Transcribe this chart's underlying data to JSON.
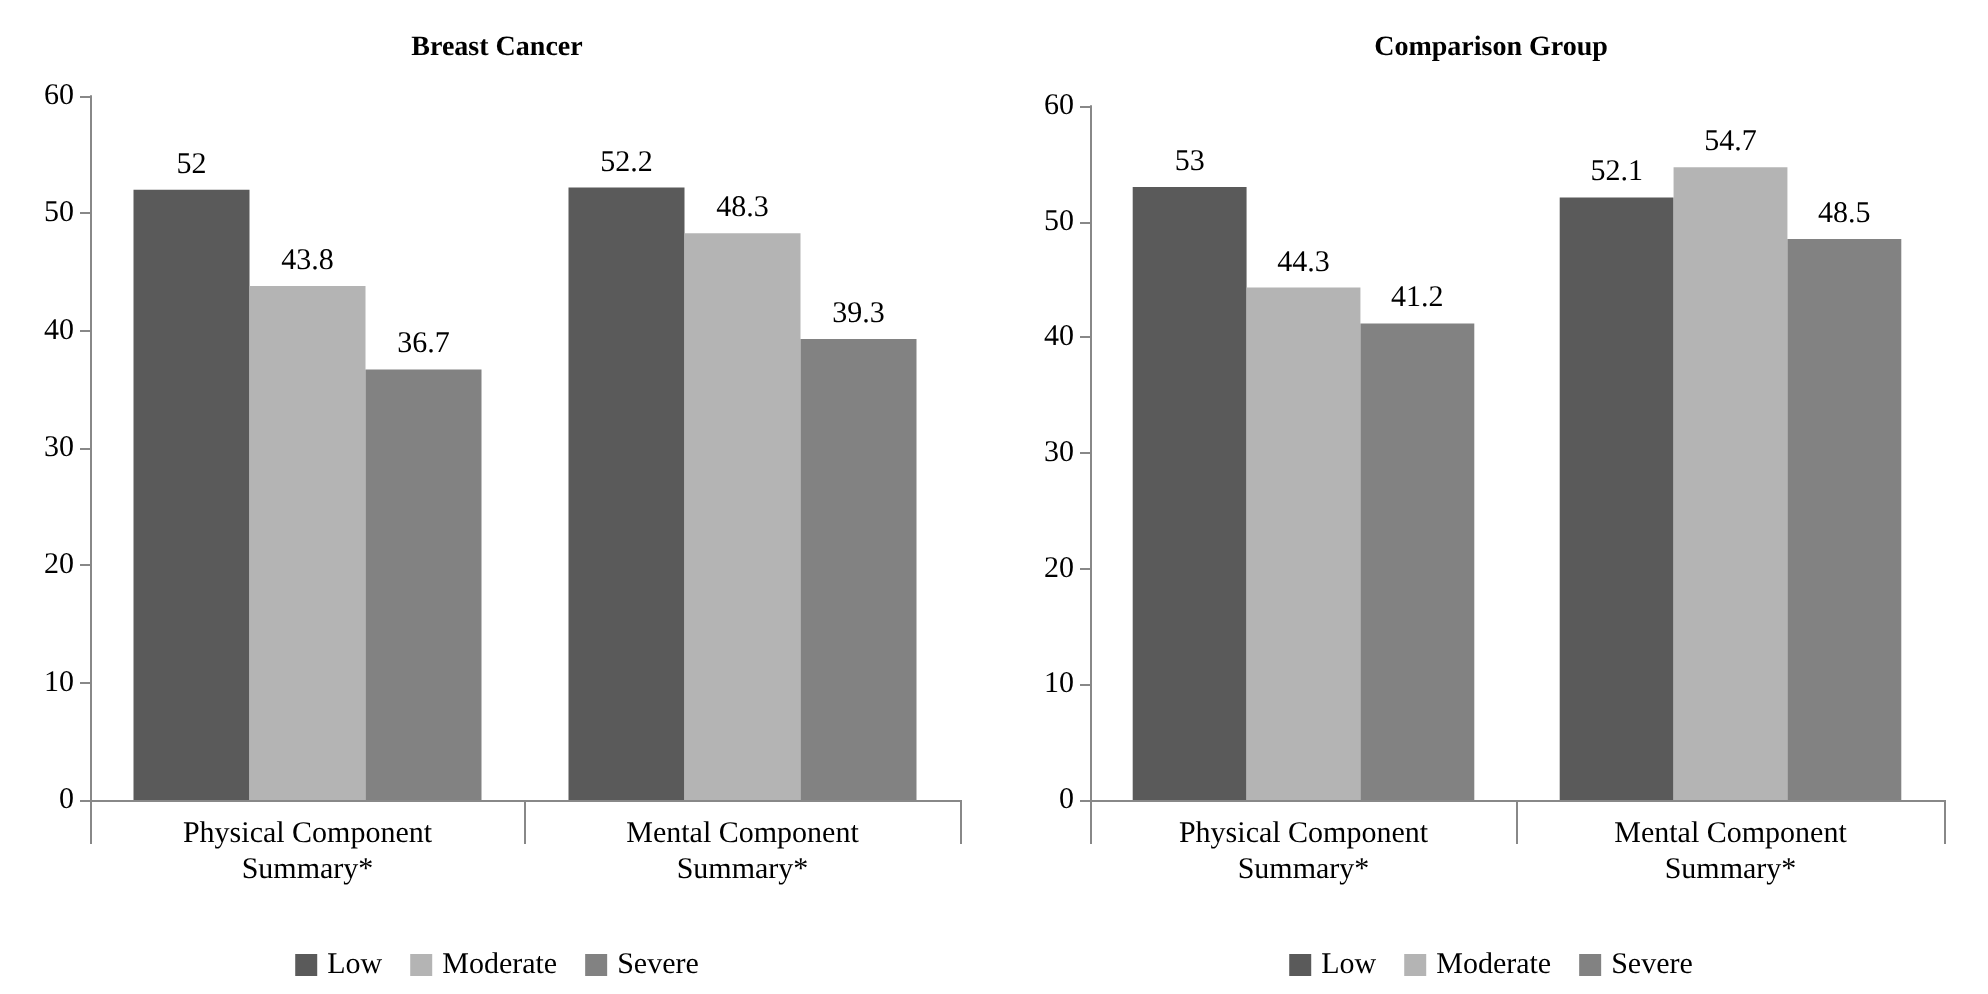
{
  "chart_data": [
    {
      "type": "bar",
      "title": "Breast Cancer",
      "categories": [
        "Physical Component Summary*",
        "Mental Component Summary*"
      ],
      "series": [
        {
          "name": "Low",
          "color": "#5a5a5a",
          "values": [
            52,
            52.2
          ]
        },
        {
          "name": "Moderate",
          "color": "#b4b4b4",
          "values": [
            43.8,
            48.3
          ]
        },
        {
          "name": "Severe",
          "color": "#828282",
          "values": [
            36.7,
            39.3
          ]
        }
      ],
      "ylim": [
        0,
        60
      ],
      "yticks": [
        0,
        10,
        20,
        30,
        40,
        50,
        60
      ],
      "grid": false,
      "legend": "bottom",
      "data_labels": true
    },
    {
      "type": "bar",
      "title": "Comparison Group",
      "categories": [
        "Physical Component Summary*",
        "Mental Component Summary*"
      ],
      "series": [
        {
          "name": "Low",
          "color": "#5a5a5a",
          "values": [
            53,
            52.1
          ]
        },
        {
          "name": "Moderate",
          "color": "#b4b4b4",
          "values": [
            44.3,
            54.7
          ]
        },
        {
          "name": "Severe",
          "color": "#828282",
          "values": [
            41.2,
            48.5
          ]
        }
      ],
      "ylim": [
        0,
        60
      ],
      "yticks": [
        0,
        10,
        20,
        30,
        40,
        50,
        60
      ],
      "grid": false,
      "legend": "bottom",
      "data_labels": true
    }
  ]
}
